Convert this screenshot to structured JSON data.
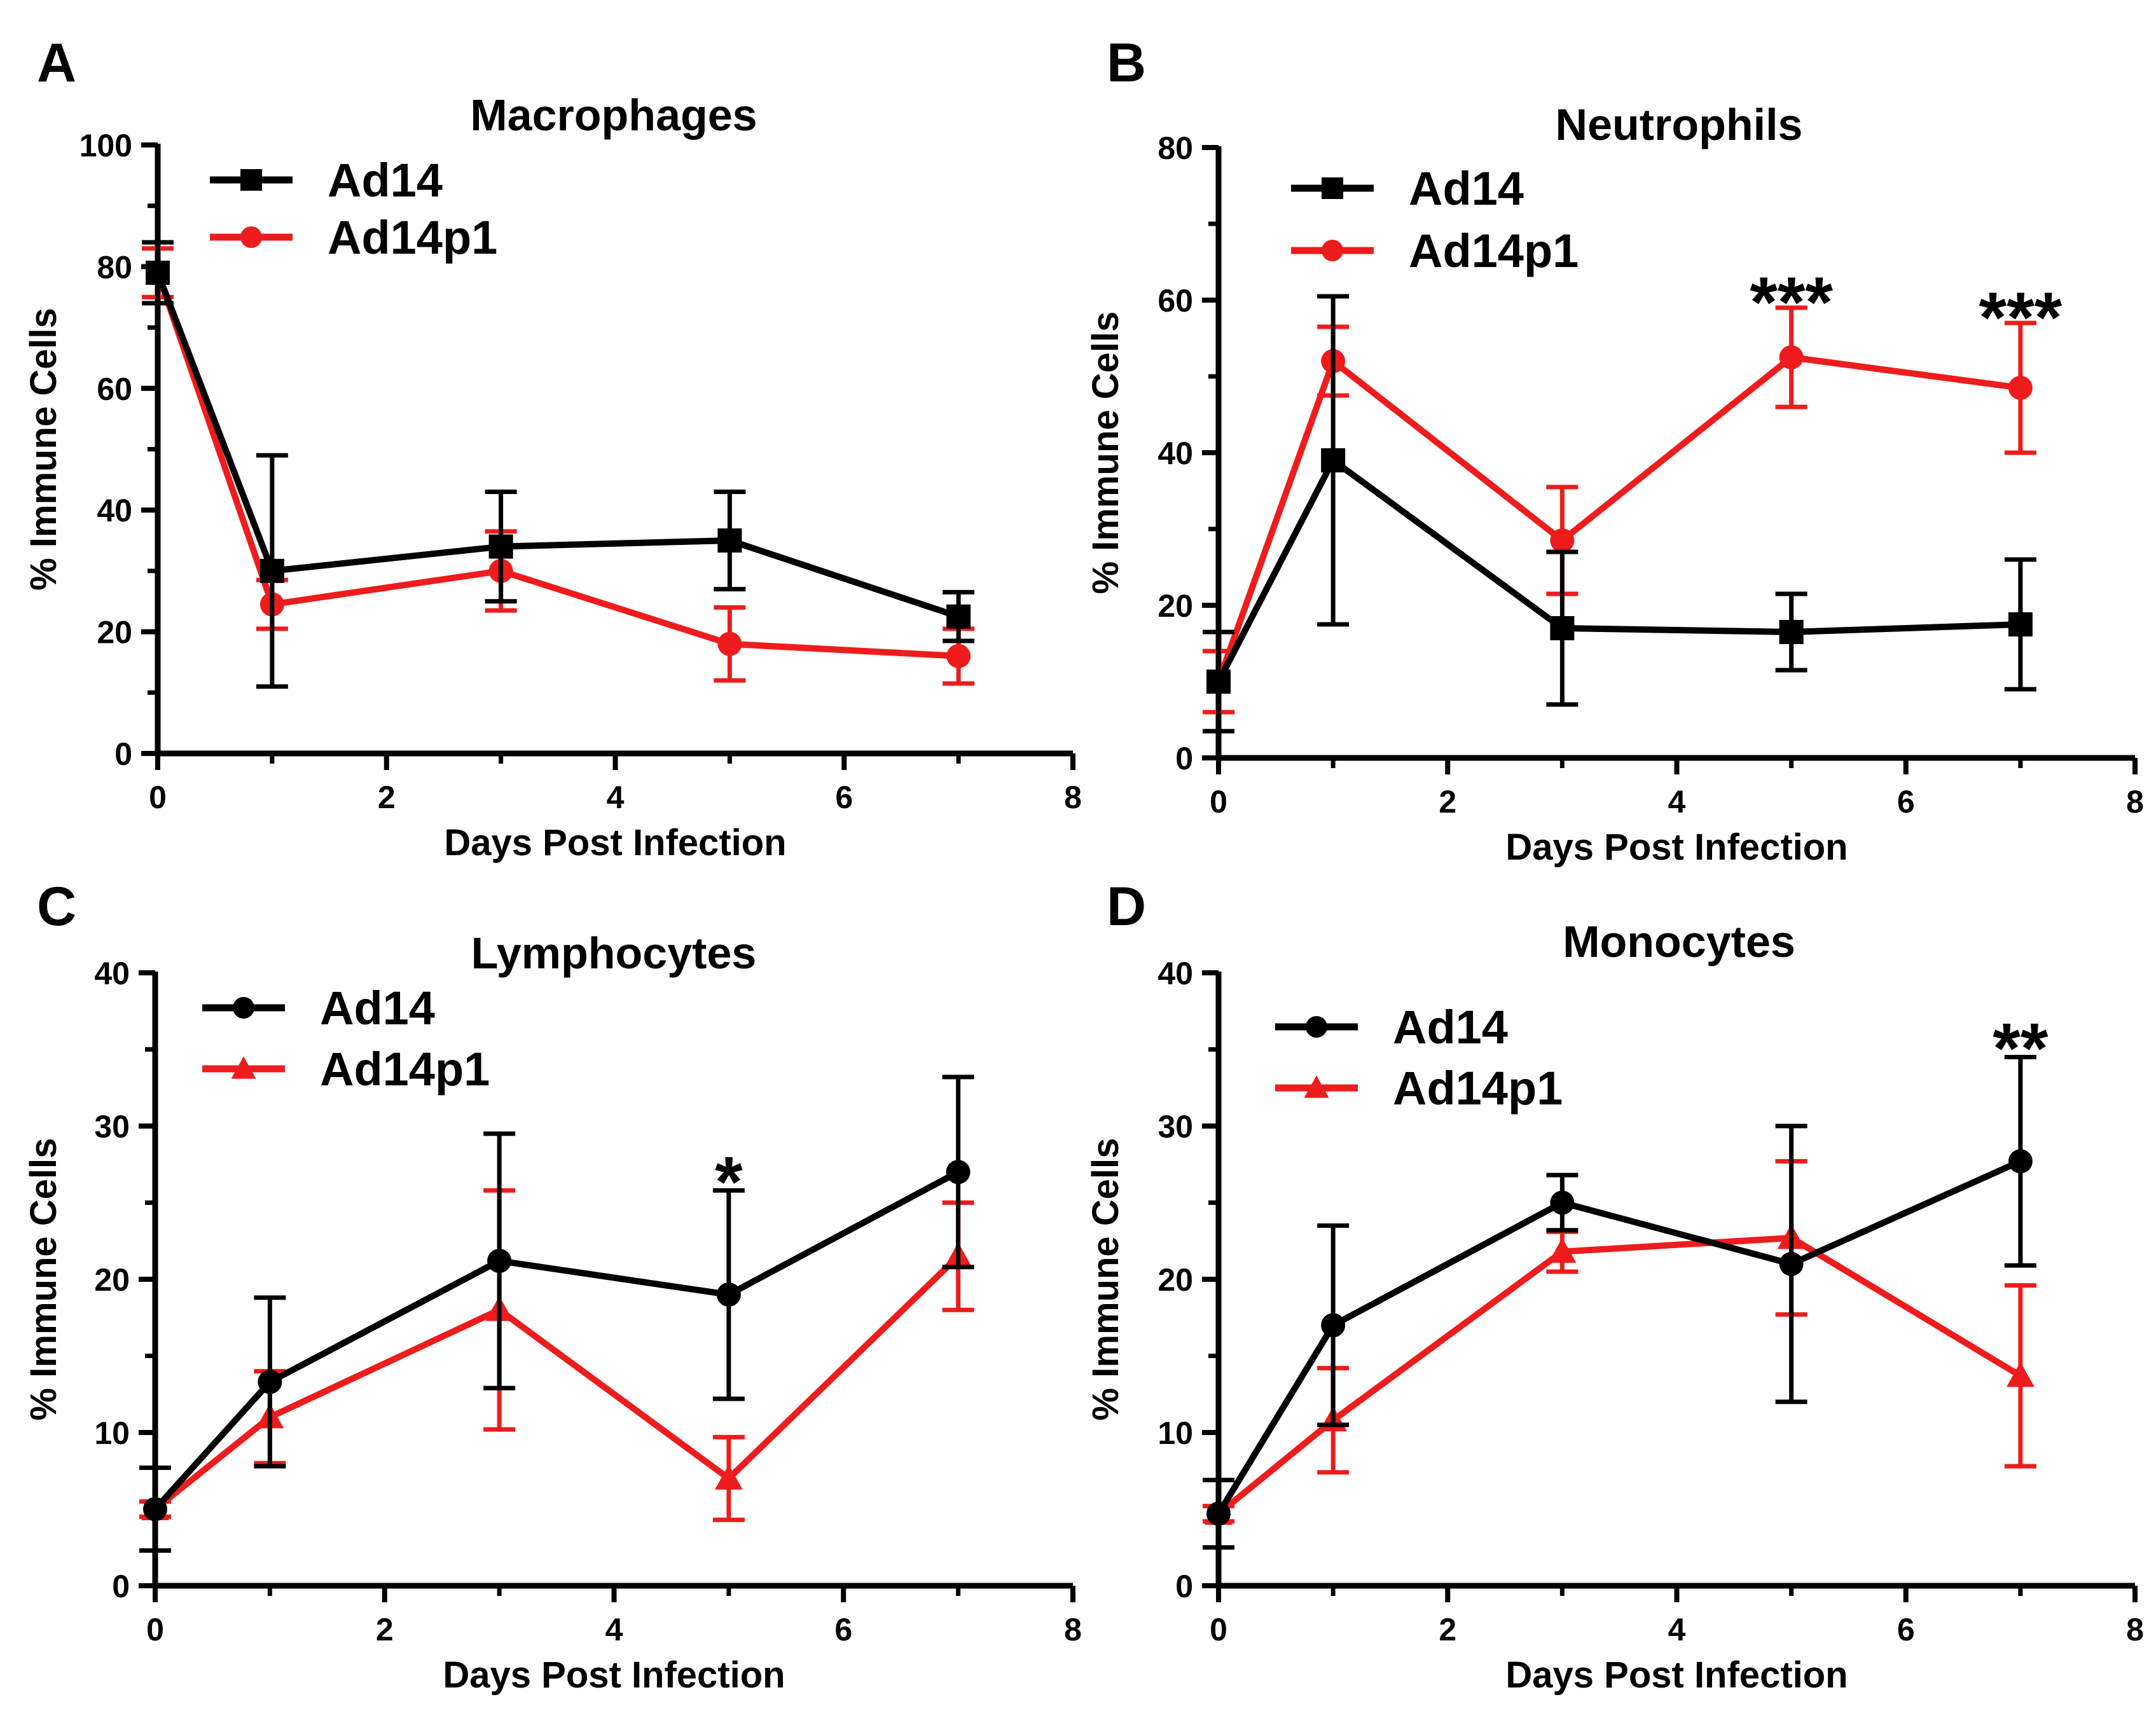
{
  "colors": {
    "ad14": "#000000",
    "ad14p1": "#ee1c1c"
  },
  "chart_data": [
    {
      "panel_label": "A",
      "type": "line",
      "title": "Macrophages",
      "xlabel": "Days Post Infection",
      "ylabel": "% Immune Cells",
      "xlim": [
        0,
        8
      ],
      "ylim": [
        0,
        100
      ],
      "xticks": [
        "0",
        "2",
        "4",
        "6",
        "8"
      ],
      "yticks": [
        "0",
        "20",
        "40",
        "60",
        "80",
        "100"
      ],
      "x": [
        0,
        1,
        3,
        5,
        7
      ],
      "series": [
        {
          "name": "Ad14",
          "color": "#000000",
          "marker": "square",
          "values": [
            79,
            30,
            34,
            35,
            22.5
          ],
          "err": [
            5,
            19,
            9,
            8,
            4
          ]
        },
        {
          "name": "Ad14p1",
          "color": "#ee1c1c",
          "marker": "circle",
          "values": [
            79,
            24.5,
            30,
            18,
            16
          ],
          "err": [
            4,
            4,
            6.5,
            6,
            4.5
          ]
        }
      ],
      "annotations": []
    },
    {
      "panel_label": "B",
      "type": "line",
      "title": "Neutrophils",
      "xlabel": "Days Post Infection",
      "ylabel": "% Immune Cells",
      "xlim": [
        0,
        8
      ],
      "ylim": [
        0,
        80
      ],
      "xticks": [
        "0",
        "2",
        "4",
        "6",
        "8"
      ],
      "yticks": [
        "0",
        "20",
        "40",
        "60",
        "80"
      ],
      "x": [
        0,
        1,
        3,
        5,
        7
      ],
      "series": [
        {
          "name": "Ad14",
          "color": "#000000",
          "marker": "square",
          "values": [
            10,
            39,
            17,
            16.5,
            17.5
          ],
          "err": [
            6.5,
            21.5,
            10,
            5,
            8.5
          ]
        },
        {
          "name": "Ad14p1",
          "color": "#ee1c1c",
          "marker": "circle",
          "values": [
            10,
            52,
            28.5,
            52.5,
            48.5
          ],
          "err": [
            4,
            4.5,
            7,
            6.5,
            8.5
          ]
        }
      ],
      "annotations": [
        {
          "x": 5,
          "y": 60,
          "text": "***"
        },
        {
          "x": 7,
          "y": 58,
          "text": "***"
        }
      ]
    },
    {
      "panel_label": "C",
      "type": "line",
      "title": "Lymphocytes",
      "xlabel": "Days Post Infection",
      "ylabel": "% Immune Cells",
      "xlim": [
        0,
        8
      ],
      "ylim": [
        0,
        40
      ],
      "xticks": [
        "0",
        "2",
        "4",
        "6",
        "8"
      ],
      "yticks": [
        "0",
        "10",
        "20",
        "30",
        "40"
      ],
      "x": [
        0,
        1,
        3,
        5,
        7
      ],
      "series": [
        {
          "name": "Ad14",
          "color": "#000000",
          "marker": "circle",
          "values": [
            5,
            13.3,
            21.2,
            19,
            27
          ],
          "err": [
            2.7,
            5.5,
            8.3,
            6.8,
            6.2
          ]
        },
        {
          "name": "Ad14p1",
          "color": "#ee1c1c",
          "marker": "triangle",
          "values": [
            5,
            11,
            18,
            7,
            21.5
          ],
          "err": [
            0.5,
            3,
            7.8,
            2.7,
            3.5
          ]
        }
      ],
      "annotations": [
        {
          "x": 5,
          "y": 26.5,
          "text": "*"
        }
      ]
    },
    {
      "panel_label": "D",
      "type": "line",
      "title": "Monocytes",
      "xlabel": "Days Post Infection",
      "ylabel": "% Immune Cells",
      "xlim": [
        0,
        8
      ],
      "ylim": [
        0,
        40
      ],
      "xticks": [
        "0",
        "2",
        "4",
        "6",
        "8"
      ],
      "yticks": [
        "0",
        "10",
        "20",
        "30",
        "40"
      ],
      "x": [
        0,
        1,
        3,
        5,
        7
      ],
      "series": [
        {
          "name": "Ad14",
          "color": "#000000",
          "marker": "circle",
          "values": [
            4.7,
            17,
            25,
            21,
            27.7
          ],
          "err": [
            2.2,
            6.5,
            1.8,
            9,
            6.8
          ]
        },
        {
          "name": "Ad14p1",
          "color": "#ee1c1c",
          "marker": "triangle",
          "values": [
            4.7,
            10.8,
            21.8,
            22.7,
            13.7
          ],
          "err": [
            0.5,
            3.4,
            1.3,
            5,
            5.9
          ]
        }
      ],
      "annotations": [
        {
          "x": 7,
          "y": 35.2,
          "text": "**"
        }
      ]
    }
  ]
}
